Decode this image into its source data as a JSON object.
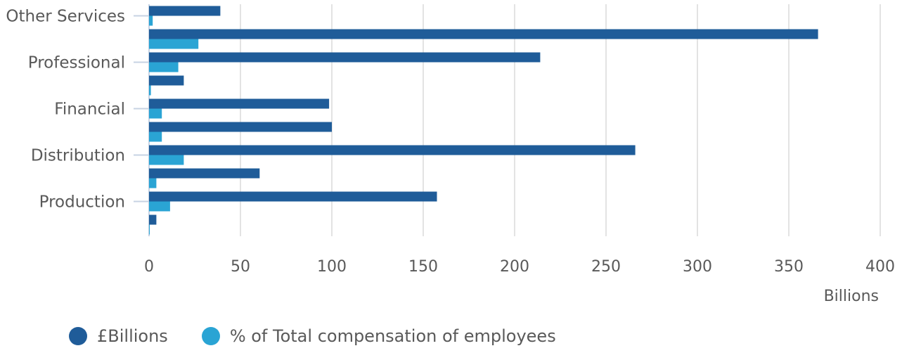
{
  "chart_data": {
    "type": "bar",
    "orientation": "horizontal",
    "categories": [
      "Other Services",
      "",
      "Professional",
      "",
      "Financial",
      "",
      "Distribution",
      "",
      "Production",
      ""
    ],
    "series": [
      {
        "name": "£Billions",
        "color": "#1f5c99",
        "values": [
          39,
          366,
          214,
          19,
          98.5,
          100,
          266,
          60.5,
          157.5,
          4
        ]
      },
      {
        "name": "% of Total compensation of employees",
        "color": "#2aa4d4",
        "values": [
          2,
          27,
          16,
          1,
          7,
          7,
          19,
          4,
          11.5,
          0.3
        ]
      }
    ],
    "xlabel": "Billions",
    "xlim": [
      0,
      400
    ],
    "xticks": [
      "0",
      "50",
      "100",
      "150",
      "200",
      "250",
      "300",
      "350",
      "400"
    ],
    "grid": true,
    "legend_position": "bottom"
  }
}
